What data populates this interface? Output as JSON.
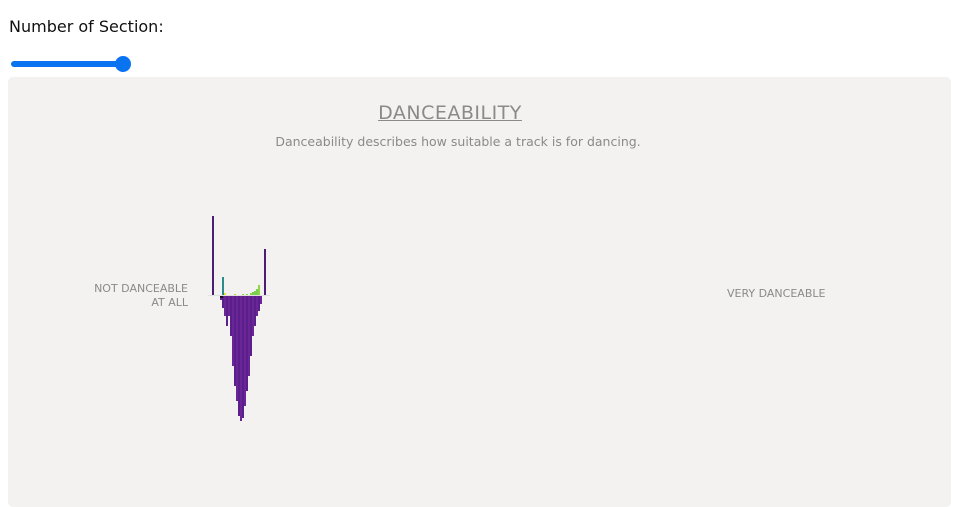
{
  "controls": {
    "section_label": "Number of Section:",
    "section_slider_fraction": 1.0,
    "accent": "#0a74f0"
  },
  "chart_data": {
    "type": "bar",
    "title": "DANCEABILITY",
    "subtitle": "Danceability describes how suitable a track is for dancing.",
    "low_label_line1": "NOT DANCEABLE",
    "low_label_line2": "AT ALL",
    "high_label": "VERY DANCEABLE",
    "up_series": [
      {
        "pos": 0,
        "value": 79,
        "color": "#4b1d73"
      },
      {
        "pos": 5,
        "value": 18,
        "color": "#2a8c8c"
      },
      {
        "pos": 6,
        "value": 2,
        "color": "#f2e024"
      },
      {
        "pos": 11,
        "value": 1,
        "color": "#b5de2b"
      },
      {
        "pos": 15,
        "value": 1,
        "color": "#8ed645"
      },
      {
        "pos": 17,
        "value": 1,
        "color": "#8ed645"
      },
      {
        "pos": 19,
        "value": 2,
        "color": "#8ed645"
      },
      {
        "pos": 20,
        "value": 3,
        "color": "#7ad151"
      },
      {
        "pos": 21,
        "value": 4,
        "color": "#7ad151"
      },
      {
        "pos": 22,
        "value": 6,
        "color": "#7ad151"
      },
      {
        "pos": 23,
        "value": 10,
        "color": "#8ed645"
      },
      {
        "pos": 26,
        "value": 46,
        "color": "#4b1d73"
      }
    ],
    "down_series": [
      4,
      12,
      20,
      30,
      20,
      40,
      70,
      90,
      105,
      120,
      125,
      122,
      110,
      95,
      80,
      60,
      40,
      30,
      20,
      15,
      8
    ],
    "down_start_pos": 4,
    "down_color": "#5a1f8a"
  }
}
